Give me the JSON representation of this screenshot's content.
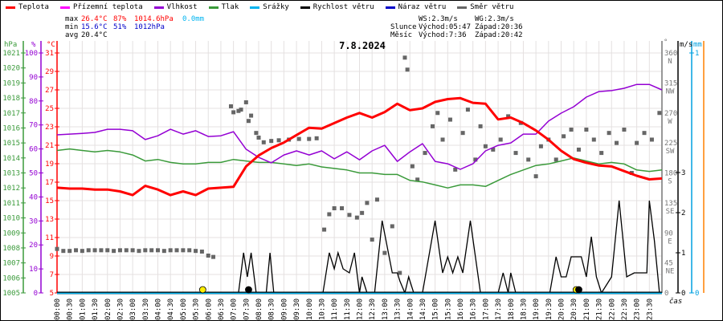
{
  "legend": [
    {
      "label": "Teplota",
      "color": "#ff0000"
    },
    {
      "label": "Přízemní teplota",
      "color": "#ff00ff"
    },
    {
      "label": "Vlhkost",
      "color": "#9400d3"
    },
    {
      "label": "Tlak",
      "color": "#3a9a3a"
    },
    {
      "label": "Srážky",
      "color": "#00b4f0"
    },
    {
      "label": "Rychlost větru",
      "color": "#000000"
    },
    {
      "label": "Náraz větru",
      "color": "#0000c8"
    },
    {
      "label": "Směr větru",
      "color": "#666666"
    }
  ],
  "stats": {
    "max_label": "max",
    "max_temp": "26.4°C",
    "max_hum": "87%",
    "max_press": "1014.6hPa",
    "max_rain": "0.0mm",
    "min_label": "min",
    "min_temp": "15.6°C",
    "min_hum": "51%",
    "min_press": "1012hPa",
    "avg_label": "avg",
    "avg_temp": "20.4°C",
    "ws": "WS:2.3m/s",
    "wg": "WG:2.3m/s",
    "sun_label": "Slunce",
    "sunrise": "Východ:05:47",
    "sunset": "Západ:20:36",
    "moon_label": "Měsíc",
    "moonrise": "Východ:7:36",
    "moonset": "Západ:20:42"
  },
  "colors": {
    "sun": "#ffee00",
    "moon": "#000000",
    "grid": "#e4e0e0",
    "dir_axis": "#777777",
    "mm_axis": "#00a0e0",
    "orange_axis": "#ff8000"
  },
  "chart_data": {
    "type": "line",
    "title": "7.8.2024",
    "xlabel": "čas",
    "x_unit_labels": {
      "hpa": "hPa",
      "pct": "%",
      "temp": "°C",
      "deg": "°",
      "ms": "m/s",
      "mm": "mm"
    },
    "x_ticks": [
      "00:00",
      "00:30",
      "01:00",
      "01:30",
      "02:00",
      "02:30",
      "03:00",
      "03:30",
      "04:00",
      "04:30",
      "05:00",
      "05:30",
      "06:00",
      "06:30",
      "07:00",
      "07:30",
      "08:00",
      "08:30",
      "09:00",
      "09:30",
      "10:00",
      "10:30",
      "11:00",
      "11:30",
      "12:00",
      "12:30",
      "13:00",
      "13:30",
      "14:00",
      "14:30",
      "15:00",
      "15:30",
      "16:00",
      "16:30",
      "17:00",
      "17:30",
      "18:00",
      "18:30",
      "19:00",
      "19:30",
      "20:00",
      "20:30",
      "21:00",
      "21:30",
      "22:00",
      "22:30",
      "23:00",
      "23:30"
    ],
    "axes": {
      "pressure": {
        "range": [
          1005,
          1021
        ],
        "ticks": [
          "1005",
          "1006",
          "1007",
          "1008",
          "1009",
          "1010",
          "1011",
          "1012",
          "1013",
          "1014",
          "1015",
          "1016",
          "1017",
          "1018",
          "1019",
          "1020",
          "1021"
        ]
      },
      "humidity": {
        "range": [
          0,
          100
        ],
        "ticks": [
          "0",
          "10",
          "20",
          "30",
          "40",
          "50",
          "60",
          "70",
          "80",
          "90",
          "100"
        ]
      },
      "temperature": {
        "range": [
          5,
          31
        ],
        "ticks": [
          "5",
          "7",
          "9",
          "11",
          "13",
          "15",
          "17",
          "19",
          "21",
          "23",
          "25",
          "27",
          "29",
          "31"
        ]
      },
      "direction": {
        "range": [
          0,
          360
        ],
        "ticks": [
          "0",
          "45",
          "90",
          "135",
          "180",
          "225",
          "270",
          "315",
          "360"
        ],
        "names": [
          "",
          "NE",
          "E",
          "SE",
          "S",
          "SW",
          "W",
          "NW",
          "N"
        ]
      },
      "wind": {
        "range": [
          0,
          6
        ],
        "ticks": [
          "0",
          "1",
          "2",
          "3"
        ]
      },
      "rain": {
        "range": [
          0,
          1
        ],
        "ticks": [
          "0",
          "1"
        ]
      }
    },
    "x_hours_step": 0.5,
    "series": [
      {
        "name": "Teplota",
        "unit": "°C",
        "values": [
          16.4,
          16.3,
          16.3,
          16.2,
          16.2,
          16.0,
          15.6,
          16.6,
          16.2,
          15.6,
          16.0,
          15.6,
          16.3,
          16.4,
          16.5,
          18.7,
          19.9,
          20.7,
          21.3,
          22.1,
          22.9,
          22.8,
          23.4,
          24.0,
          24.5,
          24.0,
          24.6,
          25.5,
          24.8,
          25.0,
          25.7,
          26.0,
          26.1,
          25.6,
          25.5,
          23.8,
          24.0,
          23.4,
          22.6,
          21.6,
          20.4,
          19.5,
          19.1,
          18.8,
          18.7,
          18.2,
          17.7,
          17.3,
          17.4
        ]
      },
      {
        "name": "Vlhkost",
        "unit": "%",
        "values": [
          65.9,
          66.2,
          66.5,
          66.9,
          68.2,
          68.2,
          67.6,
          63.9,
          65.5,
          68.2,
          66.2,
          67.6,
          65.2,
          65.5,
          67.2,
          59.9,
          56.5,
          54.2,
          57.5,
          59.2,
          57.5,
          59.2,
          55.9,
          58.8,
          55.5,
          59.2,
          61.5,
          54.8,
          58.8,
          62.2,
          54.8,
          53.8,
          51.5,
          53.8,
          59.2,
          61.5,
          62.5,
          66.2,
          66.2,
          71.6,
          74.9,
          77.6,
          81.6,
          83.9,
          84.3,
          85.3,
          86.9,
          86.9,
          84.6
        ]
      },
      {
        "name": "Tlak",
        "unit": "hPa",
        "values": [
          1014.5,
          1014.6,
          1014.5,
          1014.4,
          1014.5,
          1014.4,
          1014.2,
          1013.8,
          1013.9,
          1013.7,
          1013.6,
          1013.6,
          1013.7,
          1013.7,
          1013.9,
          1013.8,
          1013.7,
          1013.7,
          1013.6,
          1013.5,
          1013.6,
          1013.4,
          1013.3,
          1013.2,
          1013.0,
          1013.0,
          1012.9,
          1012.9,
          1012.5,
          1012.4,
          1012.2,
          1012.0,
          1012.2,
          1012.2,
          1012.1,
          1012.5,
          1012.9,
          1013.2,
          1013.5,
          1013.6,
          1013.8,
          1014.0,
          1013.8,
          1013.6,
          1013.7,
          1013.6,
          1013.2,
          1013.1,
          1013.2
        ]
      },
      {
        "name": "Srážky",
        "unit": "mm",
        "values": [
          0,
          0
        ]
      },
      {
        "name": "Rychlost větru",
        "unit": "m/s",
        "points": [
          [
            0,
            0
          ],
          [
            7.2,
            0
          ],
          [
            7.4,
            1
          ],
          [
            7.55,
            0.4
          ],
          [
            7.7,
            1
          ],
          [
            7.9,
            0
          ],
          [
            8.3,
            0
          ],
          [
            8.45,
            1
          ],
          [
            8.6,
            0
          ],
          [
            10.55,
            0
          ],
          [
            10.8,
            1.0
          ],
          [
            11.0,
            0.6
          ],
          [
            11.15,
            1.0
          ],
          [
            11.35,
            0.6
          ],
          [
            11.6,
            0.5
          ],
          [
            11.8,
            1.0
          ],
          [
            12.0,
            0
          ],
          [
            12.1,
            0.4
          ],
          [
            12.3,
            0
          ],
          [
            12.6,
            0
          ],
          [
            12.9,
            1.8
          ],
          [
            13.3,
            0.5
          ],
          [
            13.5,
            0.5
          ],
          [
            13.6,
            0.3
          ],
          [
            13.8,
            0
          ],
          [
            13.95,
            0.4
          ],
          [
            14.15,
            0
          ],
          [
            14.5,
            0
          ],
          [
            15.0,
            1.8
          ],
          [
            15.2,
            0.9
          ],
          [
            15.3,
            0.5
          ],
          [
            15.5,
            0.9
          ],
          [
            15.7,
            0.5
          ],
          [
            15.9,
            0.9
          ],
          [
            16.1,
            0.5
          ],
          [
            16.4,
            1.8
          ],
          [
            16.8,
            0
          ],
          [
            17.5,
            0
          ],
          [
            17.7,
            0.5
          ],
          [
            17.9,
            0
          ],
          [
            18.0,
            0.5
          ],
          [
            18.2,
            0
          ],
          [
            19.55,
            0
          ],
          [
            19.8,
            0.9
          ],
          [
            20.0,
            0.4
          ],
          [
            20.2,
            0.4
          ],
          [
            20.4,
            0.9
          ],
          [
            20.8,
            0.9
          ],
          [
            21.0,
            0.4
          ],
          [
            21.2,
            1.4
          ],
          [
            21.4,
            0.4
          ],
          [
            21.6,
            0
          ],
          [
            22.0,
            0.4
          ],
          [
            22.3,
            2.3
          ],
          [
            22.6,
            0.4
          ],
          [
            22.9,
            0.5
          ],
          [
            23.4,
            0.5
          ],
          [
            23.5,
            2.3
          ],
          [
            23.7,
            1.3
          ],
          [
            23.9,
            0
          ]
        ]
      },
      {
        "name": "Směr větru",
        "unit": "°",
        "type": "scatter",
        "points": [
          [
            0,
            66
          ],
          [
            0.25,
            63
          ],
          [
            0.5,
            63
          ],
          [
            0.75,
            64
          ],
          [
            1,
            63
          ],
          [
            1.25,
            64
          ],
          [
            1.5,
            64
          ],
          [
            1.75,
            64
          ],
          [
            2,
            64
          ],
          [
            2.25,
            63
          ],
          [
            2.5,
            64
          ],
          [
            2.75,
            64
          ],
          [
            3,
            64
          ],
          [
            3.25,
            63
          ],
          [
            3.5,
            64
          ],
          [
            3.75,
            64
          ],
          [
            4,
            64
          ],
          [
            4.25,
            63
          ],
          [
            4.5,
            64
          ],
          [
            4.75,
            64
          ],
          [
            5,
            64
          ],
          [
            5.25,
            64
          ],
          [
            5.5,
            63
          ],
          [
            5.75,
            62
          ],
          [
            6.0,
            56
          ],
          [
            6.2,
            54
          ],
          [
            6.9,
            280
          ],
          [
            7.0,
            271
          ],
          [
            7.2,
            273
          ],
          [
            7.3,
            275
          ],
          [
            7.5,
            286
          ],
          [
            7.6,
            258
          ],
          [
            7.7,
            266
          ],
          [
            7.9,
            240
          ],
          [
            8.0,
            233
          ],
          [
            8.2,
            226
          ],
          [
            8.5,
            228
          ],
          [
            8.8,
            229
          ],
          [
            9.2,
            230
          ],
          [
            9.6,
            231
          ],
          [
            10.0,
            231
          ],
          [
            10.3,
            232
          ],
          [
            10.6,
            95
          ],
          [
            10.8,
            118
          ],
          [
            11.0,
            127
          ],
          [
            11.3,
            127
          ],
          [
            11.6,
            117
          ],
          [
            11.9,
            113
          ],
          [
            12.1,
            120
          ],
          [
            12.3,
            135
          ],
          [
            12.5,
            80
          ],
          [
            12.7,
            140
          ],
          [
            13.0,
            60
          ],
          [
            13.3,
            100
          ],
          [
            13.6,
            30
          ],
          [
            13.8,
            353
          ],
          [
            13.9,
            335
          ],
          [
            14.1,
            190
          ],
          [
            14.3,
            170
          ],
          [
            14.6,
            210
          ],
          [
            14.9,
            250
          ],
          [
            15.1,
            270
          ],
          [
            15.3,
            230
          ],
          [
            15.6,
            260
          ],
          [
            15.8,
            185
          ],
          [
            16.1,
            240
          ],
          [
            16.3,
            275
          ],
          [
            16.6,
            200
          ],
          [
            16.8,
            250
          ],
          [
            17.0,
            220
          ],
          [
            17.3,
            215
          ],
          [
            17.6,
            230
          ],
          [
            17.9,
            265
          ],
          [
            18.2,
            210
          ],
          [
            18.4,
            255
          ],
          [
            18.7,
            200
          ],
          [
            19.0,
            175
          ],
          [
            19.2,
            220
          ],
          [
            19.5,
            230
          ],
          [
            19.8,
            200
          ],
          [
            20.1,
            235
          ],
          [
            20.4,
            245
          ],
          [
            20.7,
            215
          ],
          [
            21.0,
            245
          ],
          [
            21.3,
            230
          ],
          [
            21.6,
            210
          ],
          [
            21.9,
            240
          ],
          [
            22.2,
            225
          ],
          [
            22.5,
            245
          ],
          [
            22.8,
            180
          ],
          [
            23.0,
            225
          ],
          [
            23.3,
            240
          ],
          [
            23.6,
            230
          ],
          [
            23.9,
            270
          ]
        ]
      }
    ],
    "markers": [
      {
        "name": "sunrise",
        "hour": 5.78,
        "kind": "sun"
      },
      {
        "name": "moonrise",
        "hour": 7.6,
        "kind": "moon"
      },
      {
        "name": "sunset",
        "hour": 20.6,
        "kind": "sun"
      },
      {
        "name": "moonset",
        "hour": 20.7,
        "kind": "moon"
      }
    ]
  }
}
